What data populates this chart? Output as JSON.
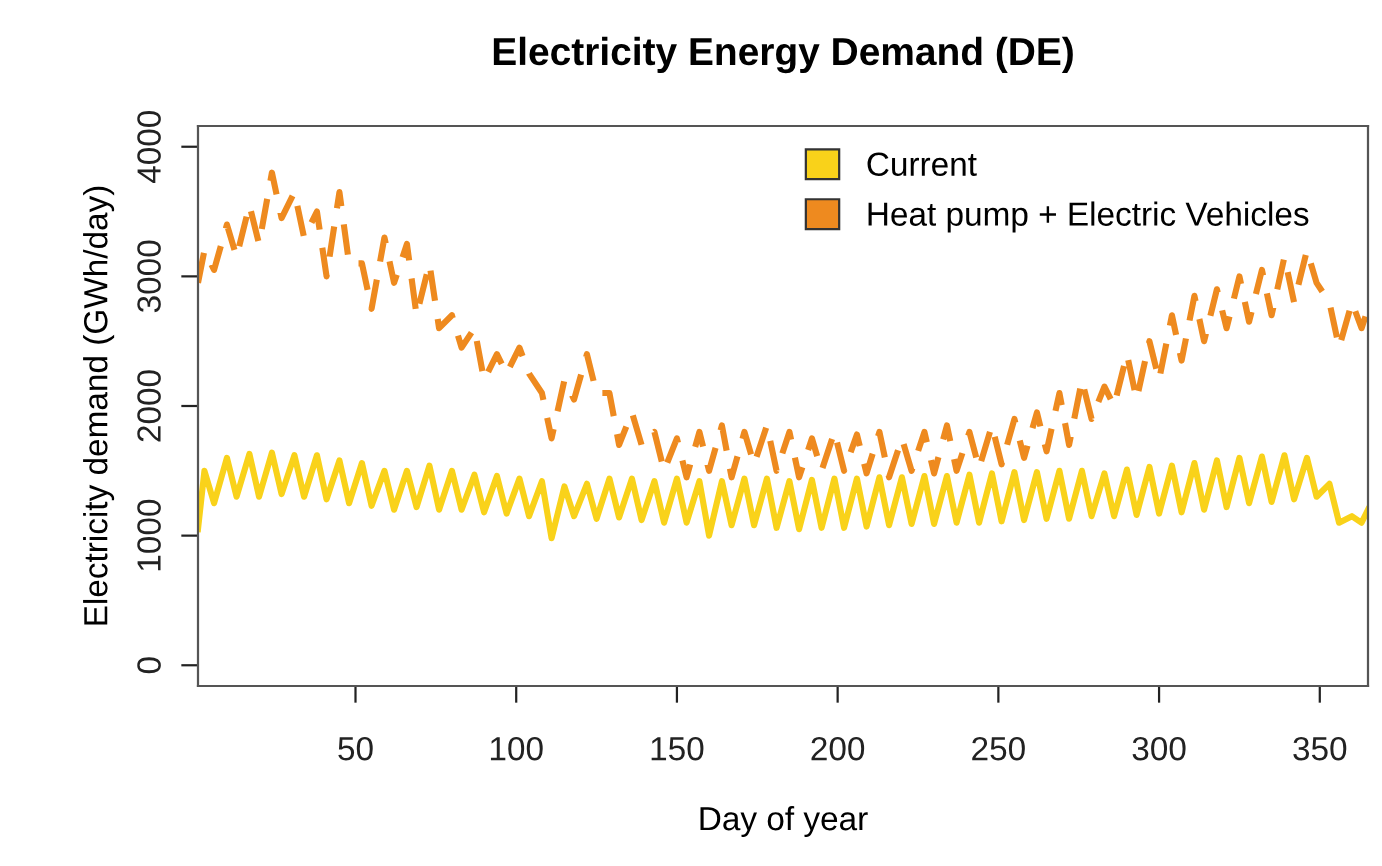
{
  "chart_data": {
    "type": "line",
    "title": "Electricity Energy Demand (DE)",
    "xlabel": "Day of year",
    "ylabel": "Electricity demand (GWh/day)",
    "x": [
      1,
      3,
      6,
      10,
      13,
      17,
      20,
      24,
      27,
      31,
      34,
      38,
      41,
      45,
      48,
      52,
      55,
      59,
      62,
      66,
      69,
      73,
      76,
      80,
      83,
      87,
      90,
      94,
      97,
      101,
      104,
      108,
      111,
      115,
      118,
      122,
      125,
      129,
      132,
      136,
      139,
      143,
      146,
      150,
      153,
      157,
      160,
      164,
      167,
      171,
      174,
      178,
      181,
      185,
      188,
      192,
      195,
      199,
      202,
      206,
      209,
      213,
      216,
      220,
      223,
      227,
      230,
      234,
      237,
      241,
      244,
      248,
      251,
      255,
      258,
      262,
      265,
      269,
      272,
      276,
      279,
      283,
      286,
      290,
      293,
      297,
      300,
      304,
      307,
      311,
      314,
      318,
      321,
      325,
      328,
      332,
      335,
      339,
      342,
      346,
      349,
      353,
      356,
      360,
      363,
      365
    ],
    "series": [
      {
        "name": "Current",
        "color": "#f9d21a",
        "line_style": "solid",
        "values": [
          1050,
          1500,
          1250,
          1600,
          1300,
          1630,
          1300,
          1640,
          1320,
          1620,
          1300,
          1620,
          1280,
          1580,
          1250,
          1560,
          1230,
          1500,
          1200,
          1500,
          1220,
          1540,
          1200,
          1500,
          1200,
          1470,
          1180,
          1460,
          1170,
          1440,
          1150,
          1420,
          980,
          1380,
          1150,
          1400,
          1130,
          1440,
          1140,
          1440,
          1120,
          1420,
          1100,
          1440,
          1100,
          1420,
          1000,
          1420,
          1080,
          1440,
          1080,
          1440,
          1060,
          1420,
          1050,
          1430,
          1060,
          1440,
          1060,
          1440,
          1070,
          1450,
          1080,
          1450,
          1090,
          1460,
          1090,
          1460,
          1100,
          1470,
          1100,
          1480,
          1110,
          1490,
          1120,
          1490,
          1130,
          1500,
          1130,
          1500,
          1150,
          1480,
          1150,
          1510,
          1160,
          1530,
          1170,
          1540,
          1180,
          1560,
          1200,
          1580,
          1220,
          1600,
          1250,
          1610,
          1260,
          1620,
          1280,
          1600,
          1300,
          1400,
          1100,
          1150,
          1100,
          1200
        ]
      },
      {
        "name": "Heat pump + Electric Vehicles",
        "color": "#ee8a1f",
        "line_style": "dashed",
        "values": [
          2950,
          3200,
          3050,
          3400,
          3150,
          3550,
          3250,
          3800,
          3450,
          3650,
          3300,
          3500,
          3000,
          3650,
          3100,
          3100,
          2750,
          3300,
          2950,
          3250,
          2700,
          3100,
          2600,
          2700,
          2450,
          2600,
          2200,
          2400,
          2250,
          2450,
          2250,
          2100,
          1750,
          2200,
          2050,
          2400,
          2100,
          2100,
          1700,
          1950,
          1700,
          1800,
          1500,
          1750,
          1450,
          1800,
          1500,
          1850,
          1450,
          1800,
          1550,
          1850,
          1500,
          1800,
          1450,
          1750,
          1500,
          1800,
          1500,
          1780,
          1480,
          1800,
          1450,
          1750,
          1500,
          1800,
          1480,
          1850,
          1500,
          1800,
          1520,
          1850,
          1550,
          1900,
          1600,
          1950,
          1650,
          2100,
          1700,
          2200,
          1900,
          2150,
          2000,
          2400,
          2050,
          2500,
          2200,
          2700,
          2350,
          2850,
          2500,
          2900,
          2600,
          3000,
          2650,
          3050,
          2700,
          3150,
          2800,
          3200,
          2950,
          2800,
          2450,
          2800,
          2600,
          2750
        ]
      }
    ],
    "xlim": [
      1,
      365
    ],
    "xticks": [
      50,
      100,
      150,
      200,
      250,
      300,
      350
    ],
    "ylim": [
      -160,
      4160
    ],
    "yticks": [
      0,
      1000,
      2000,
      3000,
      4000
    ],
    "grid": false,
    "legend": "top right",
    "marker": "none"
  }
}
